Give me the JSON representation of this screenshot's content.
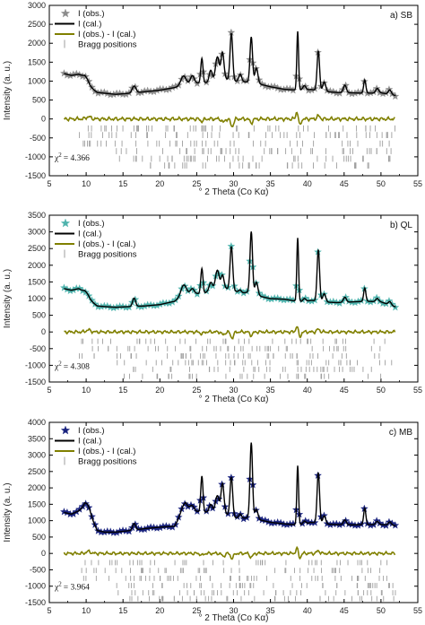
{
  "chart_data": [
    {
      "type": "line",
      "panel_label": "a) SB",
      "xlabel": "° 2 Theta (Co Kα)",
      "ylabel": "Intensity (a. u.)",
      "xlim": [
        5,
        55
      ],
      "ylim": [
        -1500,
        3000
      ],
      "xticks": [
        5,
        10,
        15,
        20,
        25,
        30,
        35,
        40,
        45,
        50,
        55
      ],
      "yticks": [
        -1500,
        -1000,
        -500,
        0,
        500,
        1000,
        1500,
        2000,
        2500,
        3000
      ],
      "chi_label": "χ",
      "chi_sup": "2",
      "chi_value": "= 4.366",
      "obs_color": "#8c8c8c",
      "obs_marker": "star",
      "legend": [
        "I (obs.)",
        "I (cal.)",
        "I (obs.) - I (cal.)",
        "Bragg positions"
      ],
      "baseline": [
        [
          7,
          1200
        ],
        [
          8,
          1150
        ],
        [
          9,
          1180
        ],
        [
          9.8,
          1120
        ],
        [
          10.5,
          850
        ],
        [
          11.5,
          700
        ],
        [
          12.5,
          680
        ],
        [
          14,
          650
        ],
        [
          16,
          680
        ],
        [
          18,
          720
        ],
        [
          20,
          760
        ],
        [
          22,
          830
        ],
        [
          23.5,
          900
        ],
        [
          24.5,
          950
        ],
        [
          26,
          950
        ],
        [
          27,
          990
        ],
        [
          28,
          1050
        ],
        [
          29,
          1050
        ],
        [
          30,
          1000
        ],
        [
          31,
          980
        ],
        [
          32,
          980
        ],
        [
          33,
          950
        ],
        [
          35,
          850
        ],
        [
          37,
          780
        ],
        [
          38,
          770
        ],
        [
          39.5,
          760
        ],
        [
          40.5,
          780
        ],
        [
          42,
          730
        ],
        [
          44,
          700
        ],
        [
          46,
          690
        ],
        [
          48,
          680
        ],
        [
          50,
          690
        ],
        [
          52,
          620
        ]
      ],
      "peaks": [
        [
          10.2,
          70,
          0.35
        ],
        [
          16.5,
          180,
          0.25
        ],
        [
          23.2,
          250,
          0.35
        ],
        [
          24.4,
          200,
          0.25
        ],
        [
          25.7,
          650,
          0.15
        ],
        [
          26.9,
          300,
          0.2
        ],
        [
          27.8,
          600,
          0.25
        ],
        [
          28.5,
          700,
          0.2
        ],
        [
          29.7,
          1250,
          0.18
        ],
        [
          30.9,
          200,
          0.2
        ],
        [
          32.4,
          1200,
          0.17
        ],
        [
          33.1,
          400,
          0.2
        ],
        [
          38.7,
          1550,
          0.12
        ],
        [
          39.6,
          120,
          0.2
        ],
        [
          41.5,
          1050,
          0.17
        ],
        [
          42.3,
          250,
          0.2
        ],
        [
          45.1,
          200,
          0.2
        ],
        [
          47.8,
          350,
          0.15
        ],
        [
          49.5,
          120,
          0.2
        ],
        [
          51.2,
          120,
          0.2
        ]
      ],
      "diff_features": [
        [
          10.3,
          60,
          0.3
        ],
        [
          25.7,
          -60,
          0.2
        ],
        [
          28.6,
          -90,
          0.2
        ],
        [
          29.8,
          -200,
          0.2
        ],
        [
          32.4,
          -100,
          0.2
        ],
        [
          38.6,
          200,
          0.15
        ],
        [
          39.0,
          -180,
          0.15
        ],
        [
          41.5,
          80,
          0.2
        ]
      ],
      "bragg_rows": [
        -250,
        -425,
        -650,
        -850,
        -1050,
        -1230
      ]
    },
    {
      "type": "line",
      "panel_label": "b) QL",
      "xlabel": "° 2 Theta (Co Kα)",
      "ylabel": "Intensity (a. u.)",
      "xlim": [
        5,
        55
      ],
      "ylim": [
        -1500,
        3500
      ],
      "xticks": [
        5,
        10,
        15,
        20,
        25,
        30,
        35,
        40,
        45,
        50,
        55
      ],
      "yticks": [
        -1500,
        -1000,
        -500,
        0,
        500,
        1000,
        1500,
        2000,
        2500,
        3000,
        3500
      ],
      "chi_label": "χ",
      "chi_sup": "2",
      "chi_value": "= 4.308",
      "obs_color": "#4fb3ad",
      "obs_marker": "star",
      "legend": [
        "I (obs.)",
        "I (cal.)",
        "I (obs.) - I (cal.)",
        "Bragg positions"
      ],
      "baseline": [
        [
          7,
          1300
        ],
        [
          8,
          1250
        ],
        [
          9,
          1300
        ],
        [
          9.8,
          1200
        ],
        [
          10.5,
          950
        ],
        [
          11.5,
          780
        ],
        [
          12.5,
          760
        ],
        [
          14,
          740
        ],
        [
          16,
          760
        ],
        [
          18,
          780
        ],
        [
          20,
          820
        ],
        [
          22,
          920
        ],
        [
          23.5,
          1150
        ],
        [
          24.5,
          1150
        ],
        [
          26,
          1150
        ],
        [
          27,
          1300
        ],
        [
          28,
          1300
        ],
        [
          29,
          1300
        ],
        [
          30,
          1250
        ],
        [
          31,
          1150
        ],
        [
          32,
          1200
        ],
        [
          33,
          1100
        ],
        [
          35,
          1000
        ],
        [
          37,
          980
        ],
        [
          38,
          940
        ],
        [
          39.5,
          900
        ],
        [
          40.5,
          950
        ],
        [
          42,
          900
        ],
        [
          44,
          880
        ],
        [
          46,
          900
        ],
        [
          48,
          920
        ],
        [
          50,
          900
        ],
        [
          52,
          750
        ]
      ],
      "peaks": [
        [
          10.2,
          80,
          0.35
        ],
        [
          16.5,
          250,
          0.2
        ],
        [
          23.2,
          300,
          0.35
        ],
        [
          24.4,
          150,
          0.25
        ],
        [
          25.7,
          750,
          0.15
        ],
        [
          26.9,
          200,
          0.2
        ],
        [
          27.8,
          550,
          0.25
        ],
        [
          28.5,
          400,
          0.2
        ],
        [
          29.7,
          1300,
          0.18
        ],
        [
          30.9,
          100,
          0.2
        ],
        [
          32.4,
          1850,
          0.17
        ],
        [
          33.1,
          400,
          0.2
        ],
        [
          38.7,
          1900,
          0.12
        ],
        [
          39.6,
          100,
          0.2
        ],
        [
          41.5,
          1550,
          0.17
        ],
        [
          42.3,
          250,
          0.2
        ],
        [
          45.1,
          150,
          0.2
        ],
        [
          47.8,
          400,
          0.15
        ],
        [
          49.5,
          100,
          0.2
        ],
        [
          51.2,
          100,
          0.2
        ]
      ],
      "diff_features": [
        [
          10.3,
          60,
          0.3
        ],
        [
          25.7,
          -60,
          0.2
        ],
        [
          28.6,
          -90,
          0.2
        ],
        [
          29.8,
          -180,
          0.2
        ],
        [
          32.4,
          -100,
          0.2
        ],
        [
          38.6,
          180,
          0.15
        ],
        [
          39.0,
          -160,
          0.15
        ],
        [
          41.5,
          80,
          0.2
        ]
      ],
      "bragg_rows": [
        -280,
        -500,
        -720,
        -920,
        -1120,
        -1330
      ]
    },
    {
      "type": "line",
      "panel_label": "c) MB",
      "xlabel": "° 2 Theta (Co Kα)",
      "ylabel": "Intensity (a. u.)",
      "xlim": [
        5,
        55
      ],
      "ylim": [
        -1500,
        4000
      ],
      "xticks": [
        5,
        10,
        15,
        20,
        25,
        30,
        35,
        40,
        45,
        50,
        55
      ],
      "yticks": [
        -1500,
        -1000,
        -500,
        0,
        500,
        1000,
        1500,
        2000,
        2500,
        3000,
        3500,
        4000
      ],
      "chi_label": "χ",
      "chi_sup": "2",
      "chi_value": "= 3.964",
      "obs_color": "#1a237e",
      "obs_marker": "star",
      "legend": [
        "I (obs.)",
        "I (cal.)",
        "I (obs.) - I (cal.)",
        "Bragg positions"
      ],
      "baseline": [
        [
          7,
          1250
        ],
        [
          8,
          1200
        ],
        [
          9,
          1300
        ],
        [
          9.8,
          1450
        ],
        [
          10.5,
          1200
        ],
        [
          11.5,
          700
        ],
        [
          12.5,
          650
        ],
        [
          14,
          650
        ],
        [
          16,
          700
        ],
        [
          18,
          760
        ],
        [
          20,
          800
        ],
        [
          22,
          830
        ],
        [
          23.5,
          1450
        ],
        [
          24.5,
          1300
        ],
        [
          26,
          1250
        ],
        [
          27,
          1300
        ],
        [
          28,
          1250
        ],
        [
          29,
          1200
        ],
        [
          30,
          1100
        ],
        [
          31,
          1050
        ],
        [
          32,
          1100
        ],
        [
          33,
          1050
        ],
        [
          35,
          950
        ],
        [
          37,
          900
        ],
        [
          38,
          880
        ],
        [
          39.5,
          880
        ],
        [
          40.5,
          950
        ],
        [
          42,
          900
        ],
        [
          44,
          880
        ],
        [
          46,
          870
        ],
        [
          48,
          880
        ],
        [
          50,
          880
        ],
        [
          52,
          850
        ]
      ],
      "peaks": [
        [
          10.2,
          180,
          0.35
        ],
        [
          16.5,
          200,
          0.2
        ],
        [
          23.2,
          150,
          0.35
        ],
        [
          24.4,
          150,
          0.25
        ],
        [
          25.7,
          1100,
          0.15
        ],
        [
          26.9,
          200,
          0.2
        ],
        [
          27.8,
          500,
          0.25
        ],
        [
          28.5,
          900,
          0.2
        ],
        [
          29.7,
          1200,
          0.18
        ],
        [
          30.9,
          150,
          0.2
        ],
        [
          32.4,
          2300,
          0.17
        ],
        [
          33.1,
          300,
          0.2
        ],
        [
          38.7,
          1800,
          0.12
        ],
        [
          39.6,
          100,
          0.2
        ],
        [
          41.5,
          1550,
          0.17
        ],
        [
          42.3,
          250,
          0.2
        ],
        [
          45.1,
          150,
          0.2
        ],
        [
          47.8,
          500,
          0.15
        ],
        [
          49.5,
          100,
          0.2
        ],
        [
          51.2,
          100,
          0.2
        ]
      ],
      "diff_features": [
        [
          10.3,
          60,
          0.3
        ],
        [
          25.7,
          -60,
          0.2
        ],
        [
          28.6,
          -90,
          0.2
        ],
        [
          29.8,
          -150,
          0.2
        ],
        [
          32.4,
          -120,
          0.2
        ],
        [
          38.6,
          160,
          0.15
        ],
        [
          39.0,
          -140,
          0.15
        ],
        [
          41.5,
          80,
          0.2
        ]
      ],
      "bragg_rows": [
        -280,
        -520,
        -760,
        -980,
        -1200,
        -1380
      ]
    }
  ],
  "colors": {
    "calc": "#000000",
    "diff": "#808000",
    "bragg": "#9e9e9e",
    "frame": "#000000"
  }
}
